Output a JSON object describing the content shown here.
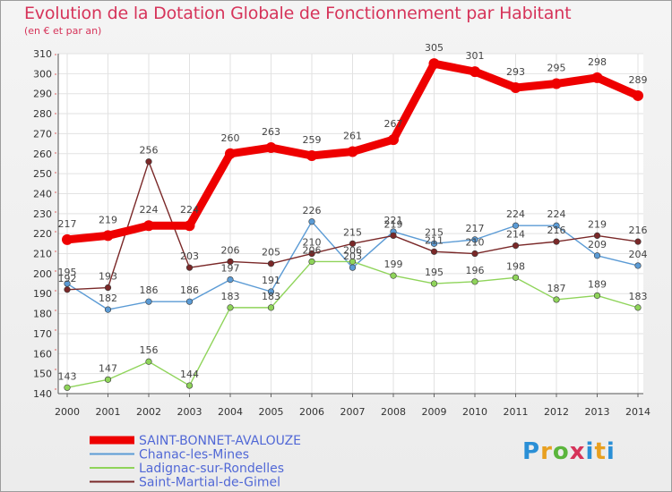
{
  "title": "Evolution de la Dotation Globale de Fonctionnement par Habitant",
  "subtitle": "(en € et par an)",
  "logo_text": "Proxiti",
  "chart_data": {
    "type": "line",
    "title": "Evolution de la Dotation Globale de Fonctionnement par Habitant",
    "ylabel": "(en € et par an)",
    "xlabel": "",
    "ylim": [
      140,
      310
    ],
    "yticks": [
      140,
      150,
      160,
      170,
      180,
      190,
      200,
      210,
      220,
      230,
      240,
      250,
      260,
      270,
      280,
      290,
      300,
      310
    ],
    "x": [
      "2000",
      "2001",
      "2002",
      "2003",
      "2004",
      "2005",
      "2006",
      "2007",
      "2008",
      "2009",
      "2010",
      "2011",
      "2012",
      "2013",
      "2014"
    ],
    "legend_position": "bottom-left",
    "series": [
      {
        "name": "Chanac-les-Mines",
        "color": "#5b9bd5",
        "values": [
          195,
          182,
          186,
          186,
          197,
          191,
          226,
          203,
          221,
          215,
          217,
          224,
          224,
          209,
          204
        ]
      },
      {
        "name": "Ladignac-sur-Rondelles",
        "color": "#8fd45a",
        "values": [
          143,
          147,
          156,
          144,
          183,
          183,
          206,
          206,
          199,
          195,
          196,
          198,
          187,
          189,
          183
        ]
      },
      {
        "name": "Saint-Martial-de-Gimel",
        "color": "#7a2828",
        "values": [
          192,
          193,
          256,
          203,
          206,
          205,
          210,
          215,
          219,
          211,
          210,
          214,
          216,
          219,
          216
        ]
      },
      {
        "name": "SAINT-BONNET-AVALOUZE",
        "color": "#ee0000",
        "values": [
          217,
          219,
          224,
          224,
          260,
          263,
          259,
          261,
          267,
          305,
          301,
          293,
          295,
          298,
          289
        ]
      }
    ],
    "legend_order": [
      "SAINT-BONNET-AVALOUZE",
      "Chanac-les-Mines",
      "Ladignac-sur-Rondelles",
      "Saint-Martial-de-Gimel"
    ]
  }
}
